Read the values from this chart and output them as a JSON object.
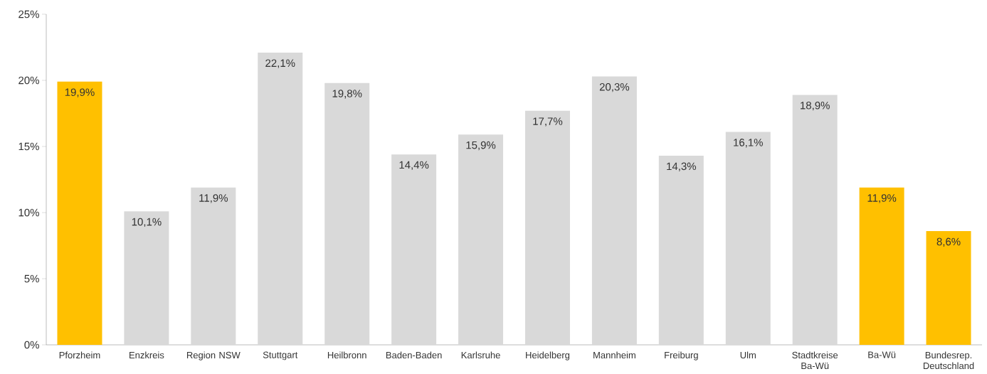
{
  "chart_data": {
    "type": "bar",
    "categories": [
      "Pforzheim",
      "Enzkreis",
      "Region NSW",
      "Stuttgart",
      "Heilbronn",
      "Baden-Baden",
      "Karlsruhe",
      "Heidelberg",
      "Mannheim",
      "Freiburg",
      "Ulm",
      "Stadtkreise Ba-Wü",
      "Ba-Wü",
      "Bundesrep. Deutschland"
    ],
    "values": [
      19.9,
      10.1,
      11.9,
      22.1,
      19.8,
      14.4,
      15.9,
      17.7,
      20.3,
      14.3,
      16.1,
      18.9,
      11.9,
      8.6
    ],
    "value_labels": [
      "19,9%",
      "10,1%",
      "11,9%",
      "22,1%",
      "19,8%",
      "14,4%",
      "15,9%",
      "17,7%",
      "20,3%",
      "14,3%",
      "16,1%",
      "18,9%",
      "11,9%",
      "8,6%"
    ],
    "colors": [
      "#ffc000",
      "#d9d9d9",
      "#d9d9d9",
      "#d9d9d9",
      "#d9d9d9",
      "#d9d9d9",
      "#d9d9d9",
      "#d9d9d9",
      "#d9d9d9",
      "#d9d9d9",
      "#d9d9d9",
      "#d9d9d9",
      "#ffc000",
      "#ffc000"
    ],
    "ylim": [
      0,
      25
    ],
    "yticks": [
      {
        "value": 0,
        "label": "0%"
      },
      {
        "value": 5,
        "label": "5%"
      },
      {
        "value": 10,
        "label": "10%"
      },
      {
        "value": 15,
        "label": "15%"
      },
      {
        "value": 20,
        "label": "20%"
      },
      {
        "value": 25,
        "label": "25%"
      }
    ],
    "tick_labels": true
  }
}
